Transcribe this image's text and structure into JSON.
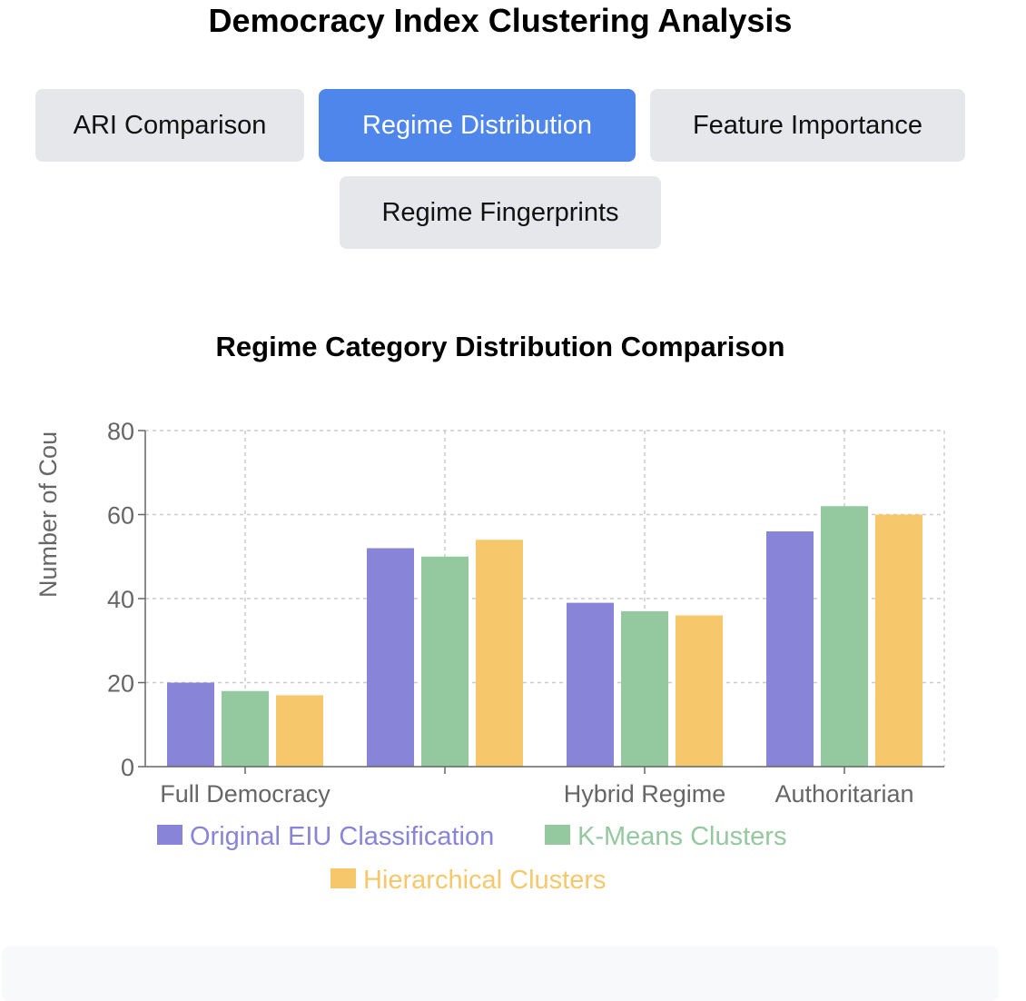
{
  "header": {
    "title": "Democracy Index Clustering Analysis"
  },
  "tabs": [
    {
      "label": "ARI Comparison",
      "active": false
    },
    {
      "label": "Regime Distribution",
      "active": true
    },
    {
      "label": "Feature Importance",
      "active": false
    },
    {
      "label": "Regime Fingerprints",
      "active": false
    }
  ],
  "colors": {
    "tab_active_bg": "#4f86ec",
    "tab_bg": "#e5e7eb",
    "series_1": "#8884d8",
    "series_2": "#94c99f",
    "series_3": "#f6c86b",
    "grid": "#cccccc",
    "axis_text": "#666666"
  },
  "chart_data": {
    "type": "bar",
    "title": "Regime Category Distribution Comparison",
    "ylabel": "Number of Cou",
    "xlabel": "",
    "ylim": [
      0,
      80
    ],
    "yticks": [
      0,
      20,
      40,
      60,
      80
    ],
    "categories": [
      "Full Democracy",
      "",
      "Hybrid Regime",
      "Authoritarian"
    ],
    "series": [
      {
        "name": "Original EIU Classification",
        "values": [
          20,
          52,
          39,
          56
        ],
        "color": "#8884d8"
      },
      {
        "name": "K-Means Clusters",
        "values": [
          18,
          50,
          37,
          62
        ],
        "color": "#94c99f"
      },
      {
        "name": "Hierarchical Clusters",
        "values": [
          17,
          54,
          36,
          60
        ],
        "color": "#f6c86b"
      }
    ],
    "grid": true,
    "legend_placement": "bottom-center"
  }
}
